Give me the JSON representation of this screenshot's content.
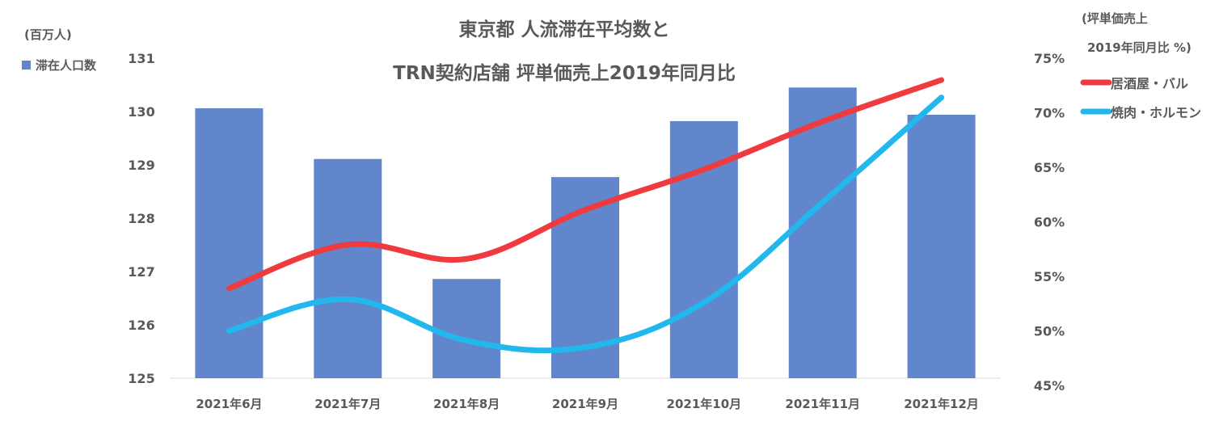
{
  "chart_data": {
    "type": "bar+line",
    "title_line1": "東京都 人流滞在平均数と",
    "title_line2": "TRN契約店舗 坪単価売上2019年同月比",
    "left_axis_unit": "(百万人)",
    "right_axis_unit_line1": "(坪単価売上",
    "right_axis_unit_line2": "2019年同月比 %)",
    "categories": [
      "2021年6月",
      "2021年7月",
      "2021年8月",
      "2021年9月",
      "2021年10月",
      "2021年11月",
      "2021年12月"
    ],
    "left_axis": {
      "min": 125,
      "max": 131,
      "ticks": [
        125,
        126,
        127,
        128,
        129,
        130,
        131
      ]
    },
    "right_axis": {
      "min": 45,
      "max": 75,
      "ticks": [
        45,
        50,
        55,
        60,
        65,
        70,
        75
      ],
      "tick_labels": [
        "45%",
        "50%",
        "55%",
        "60%",
        "65%",
        "70%",
        "75%"
      ]
    },
    "bar_series": {
      "name": "滞在人口数",
      "color": "#6186cc",
      "axis": "left",
      "values": [
        130.06,
        129.11,
        126.86,
        128.77,
        129.82,
        130.45,
        129.94
      ]
    },
    "line_series": [
      {
        "name": "居酒屋・バル",
        "color": "#ef3b3f",
        "axis": "right",
        "values": [
          53.9,
          57.9,
          56.6,
          61.1,
          64.8,
          69.2,
          73.0
        ]
      },
      {
        "name": "焼肉・ホルモン",
        "color": "#22b8ee",
        "axis": "right",
        "values": [
          50.0,
          52.9,
          49.1,
          48.5,
          52.6,
          61.8,
          71.4
        ]
      }
    ],
    "grid": false,
    "legend_placement": "left for bars, right for lines"
  }
}
